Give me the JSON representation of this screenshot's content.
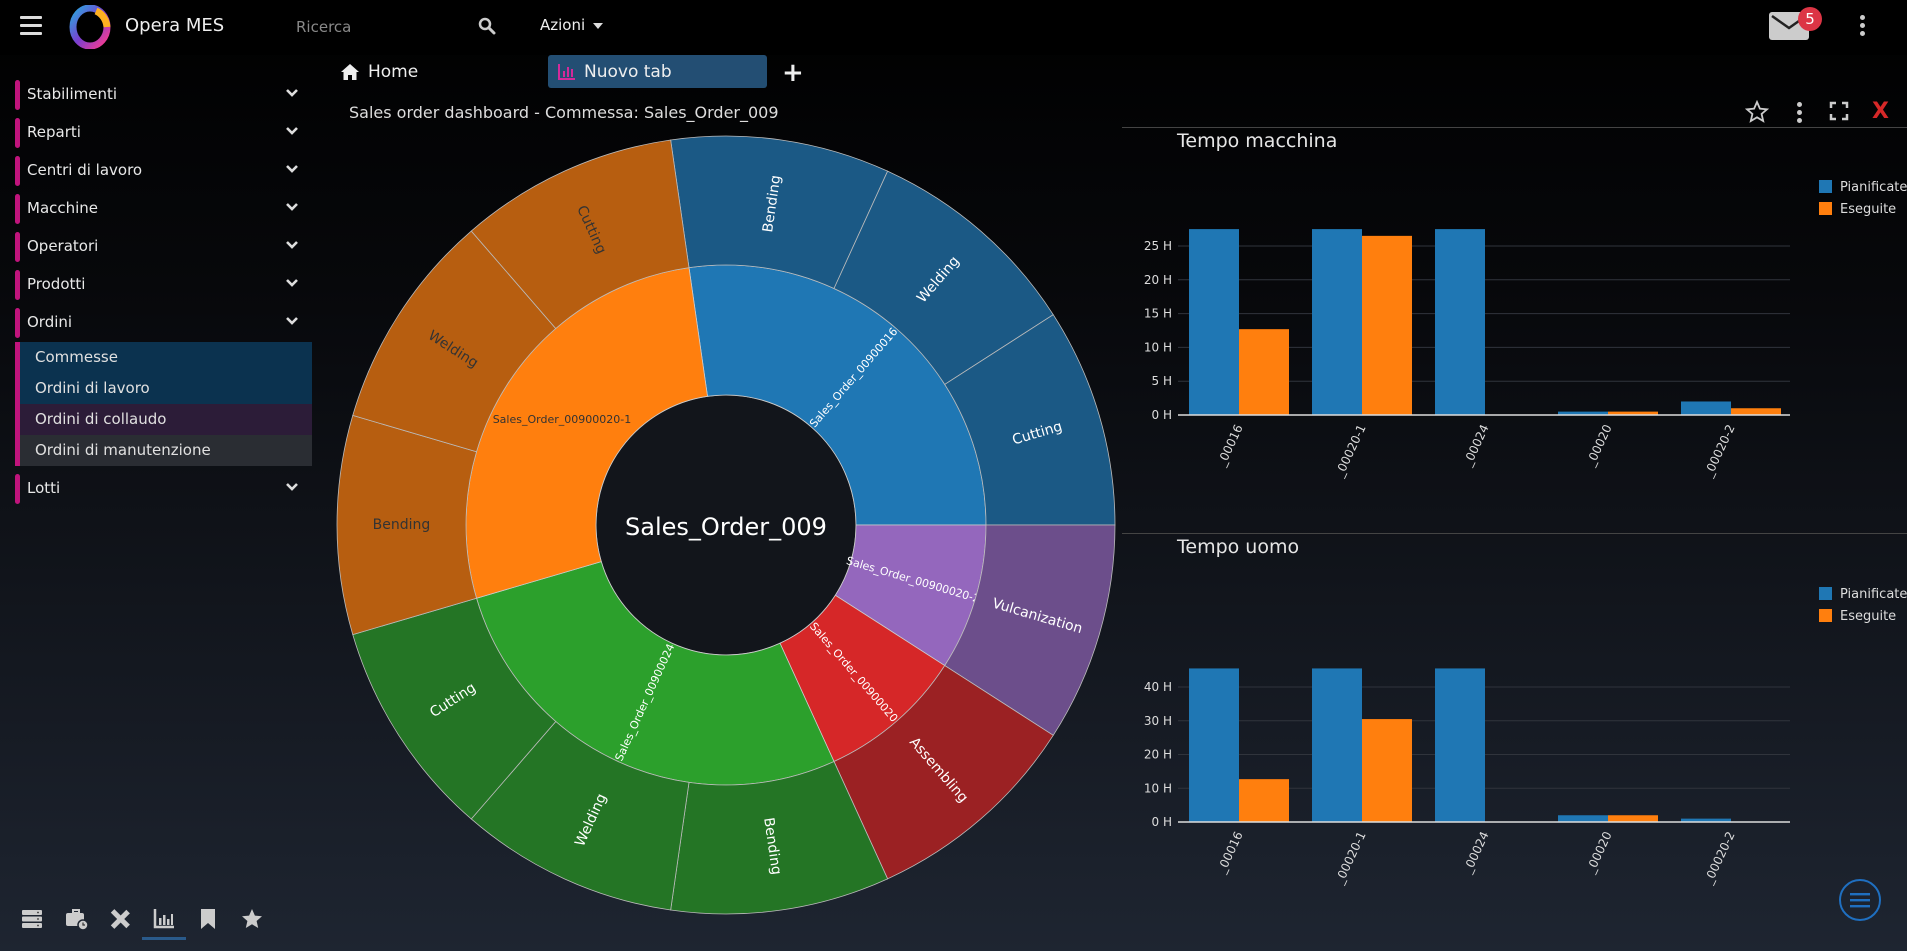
{
  "header": {
    "app_name": "Opera MES",
    "search_placeholder": "Ricerca",
    "actions_label": "Azioni",
    "mail_badge": "5"
  },
  "sidebar": {
    "items": [
      {
        "label": "Stabilimenti"
      },
      {
        "label": "Reparti"
      },
      {
        "label": "Centri di lavoro"
      },
      {
        "label": "Macchine"
      },
      {
        "label": "Operatori"
      },
      {
        "label": "Prodotti"
      },
      {
        "label": "Ordini"
      }
    ],
    "ordini_sub": [
      {
        "label": "Commesse"
      },
      {
        "label": "Ordini di lavoro"
      },
      {
        "label": "Ordini di collaudo"
      },
      {
        "label": "Ordini di manutenzione"
      }
    ],
    "last_item": {
      "label": "Lotti"
    },
    "accent": "#c0147c",
    "bottom_icons": [
      "server-icon",
      "briefcase-clock-icon",
      "pencil-ruler-icon",
      "chart-bar-icon",
      "bookmark-icon",
      "star-icon"
    ],
    "active_bottom_icon": "chart-bar-icon"
  },
  "tabs": {
    "home_label": "Home",
    "active_label": "Nuovo tab",
    "add_label": "+"
  },
  "dashboard": {
    "title": "Sales order dashboard - Commessa: Sales_Order_009",
    "close_label": "X"
  },
  "chart_data": [
    {
      "type": "sunburst",
      "root": "Sales_Order_009",
      "children": [
        {
          "name": "Sales_Order_00900016",
          "color": "#1f77b4",
          "children": [
            {
              "name": "Bending",
              "value": 1
            },
            {
              "name": "Welding",
              "value": 1
            },
            {
              "name": "Cutting",
              "value": 1
            }
          ]
        },
        {
          "name": "Sales_Order_00900020-2",
          "color": "#9467bd",
          "children": [
            {
              "name": "Vulcanization",
              "value": 1
            }
          ]
        },
        {
          "name": "Sales_Order_00900020",
          "color": "#d62728",
          "children": [
            {
              "name": "Assembling",
              "value": 1
            }
          ]
        },
        {
          "name": "Sales_Order_00900024",
          "color": "#2ca02c",
          "children": [
            {
              "name": "Bending",
              "value": 1
            },
            {
              "name": "Welding",
              "value": 1
            },
            {
              "name": "Cutting",
              "value": 1
            }
          ]
        },
        {
          "name": "Sales_Order_00900020-1",
          "color": "#ff7f0e",
          "children": [
            {
              "name": "Bending",
              "value": 1
            },
            {
              "name": "Welding",
              "value": 1
            },
            {
              "name": "Cutting",
              "value": 1
            }
          ]
        }
      ]
    },
    {
      "type": "bar",
      "title": "Tempo macchina",
      "categories": [
        "_00016",
        "_00020-1",
        "_00024",
        "_00020",
        "_00020-2"
      ],
      "series": [
        {
          "name": "Pianificate",
          "color": "#1f77b4",
          "values": [
            27.5,
            27.5,
            27.5,
            0.5,
            2
          ]
        },
        {
          "name": "Eseguite",
          "color": "#ff7f0e",
          "values": [
            12.7,
            26.5,
            0,
            0.5,
            1
          ]
        }
      ],
      "yticks": [
        0,
        5,
        10,
        15,
        20,
        25
      ],
      "tick_suffix": " H",
      "ylim": [
        0,
        28
      ],
      "grid": true,
      "legend": "top-right"
    },
    {
      "type": "bar",
      "title": "Tempo uomo",
      "categories": [
        "_00016",
        "_00020-1",
        "_00024",
        "_00020",
        "_00020-2"
      ],
      "series": [
        {
          "name": "Pianificate",
          "color": "#1f77b4",
          "values": [
            45.5,
            45.5,
            45.5,
            2,
            1
          ]
        },
        {
          "name": "Eseguite",
          "color": "#ff7f0e",
          "values": [
            12.7,
            30.5,
            0,
            2,
            0
          ]
        }
      ],
      "yticks": [
        0,
        10,
        20,
        30,
        40
      ],
      "tick_suffix": " H",
      "ylim": [
        0,
        47
      ],
      "grid": true,
      "legend": "top-right"
    }
  ]
}
